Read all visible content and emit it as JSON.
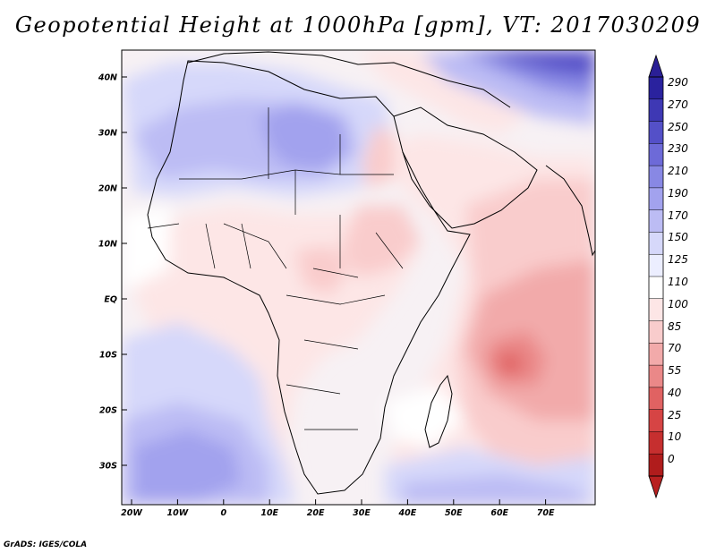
{
  "title": "Geopotential Height at 1000hPa [gpm], VT: 2017030209",
  "credit": "GrADS: IGES/COLA",
  "map": {
    "variable": "Geopotential Height",
    "level": "1000hPa",
    "units": "gpm",
    "valid_time": "2017030209",
    "lat_ticks": [
      "40N",
      "30N",
      "20N",
      "10N",
      "EQ",
      "10S",
      "20S",
      "30S"
    ],
    "lon_ticks": [
      "20W",
      "10W",
      "0",
      "10E",
      "20E",
      "30E",
      "40E",
      "50E",
      "60E",
      "70E"
    ]
  },
  "colorbar": {
    "labels": [
      "290",
      "270",
      "250",
      "230",
      "210",
      "190",
      "170",
      "150",
      "125",
      "110",
      "100",
      "85",
      "70",
      "55",
      "40",
      "25",
      "10",
      "0"
    ],
    "colors": [
      "#2a229e",
      "#3e38b4",
      "#5450c8",
      "#6d6ad8",
      "#8888e4",
      "#a2a2ee",
      "#bcbcf4",
      "#d6d8fa",
      "#eceeff",
      "#ffffff",
      "#fde6e6",
      "#f9cccc",
      "#f2aaaa",
      "#ea8888",
      "#e06262",
      "#d64444",
      "#c62f2f",
      "#b01c1c"
    ],
    "top_color": "#2a1f96",
    "bottom_color": "#b82020"
  }
}
